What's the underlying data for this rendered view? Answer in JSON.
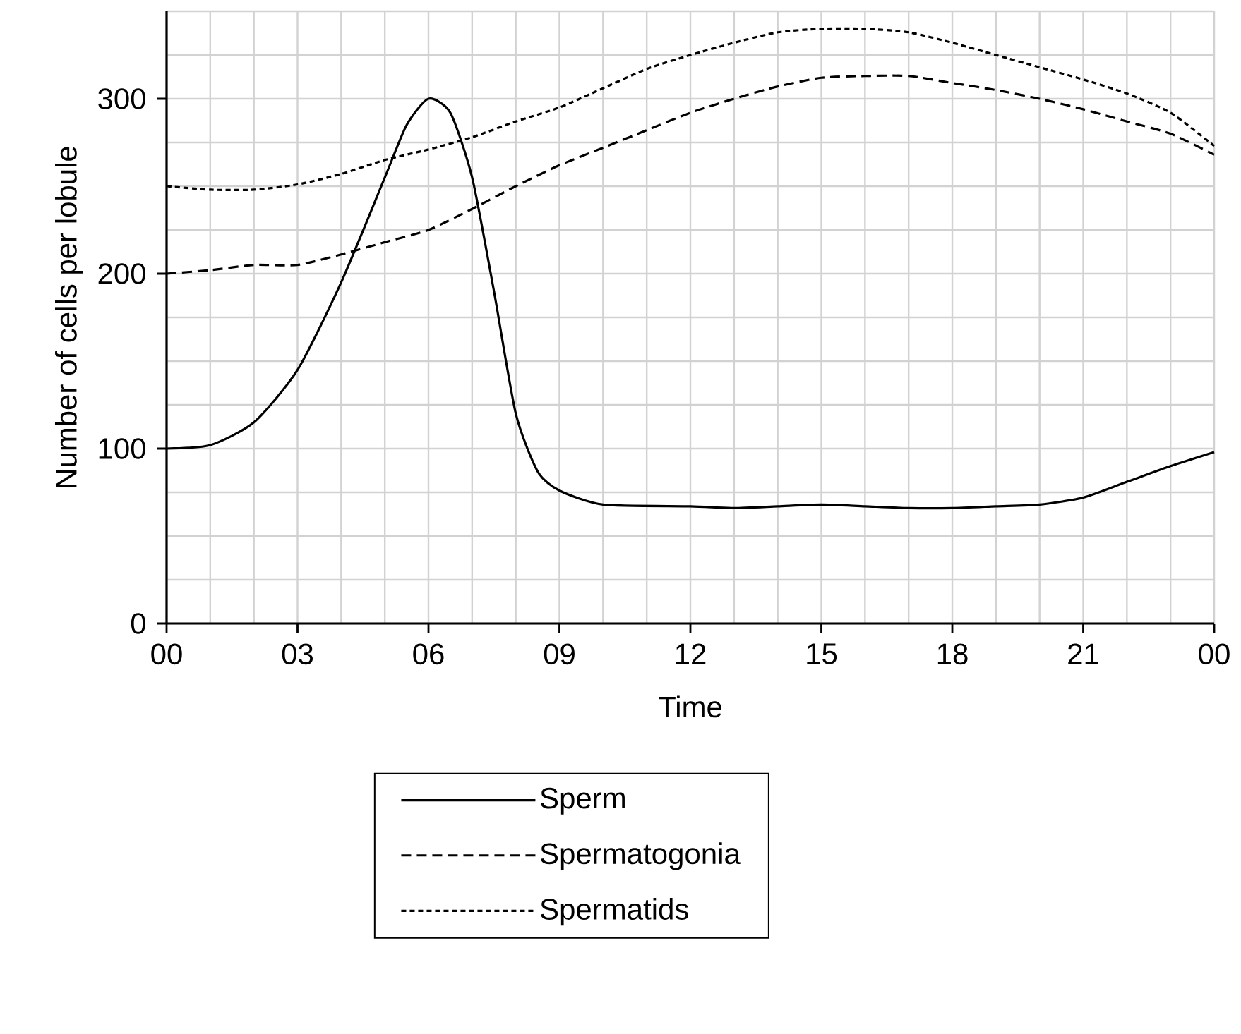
{
  "chart_data": {
    "type": "line",
    "xlabel": "Time",
    "ylabel": "Number of cells per lobule",
    "xlim": [
      0,
      24
    ],
    "ylim": [
      0,
      350
    ],
    "xticks": [
      {
        "value": 0,
        "label": "00"
      },
      {
        "value": 3,
        "label": "03"
      },
      {
        "value": 6,
        "label": "06"
      },
      {
        "value": 9,
        "label": "09"
      },
      {
        "value": 12,
        "label": "12"
      },
      {
        "value": 15,
        "label": "15"
      },
      {
        "value": 18,
        "label": "18"
      },
      {
        "value": 21,
        "label": "21"
      },
      {
        "value": 24,
        "label": "00"
      }
    ],
    "yticks": [
      0,
      100,
      200,
      300
    ],
    "grid": true,
    "legend": "bottom",
    "marker": "none",
    "series": [
      {
        "name": "Sperm",
        "color": "#000000",
        "line_style": "solid",
        "x": [
          0,
          1,
          2,
          3,
          4,
          5,
          5.5,
          6,
          6.5,
          7,
          7.5,
          8,
          8.5,
          9,
          10,
          12,
          13,
          14,
          15,
          16,
          17,
          18,
          19,
          20,
          21,
          22,
          23,
          24
        ],
        "values": [
          100,
          102,
          115,
          145,
          195,
          255,
          285,
          300,
          292,
          255,
          190,
          120,
          87,
          76,
          68,
          67,
          66,
          67,
          68,
          67,
          66,
          66,
          67,
          68,
          72,
          81,
          90,
          98
        ]
      },
      {
        "name": "Spermatogonia",
        "color": "#000000",
        "line_style": "dashed",
        "x": [
          0,
          1,
          2,
          3,
          4,
          5,
          6,
          7,
          8,
          9,
          10,
          11,
          12,
          13,
          14,
          15,
          16,
          17,
          18,
          19,
          20,
          21,
          22,
          23,
          24
        ],
        "values": [
          200,
          202,
          205,
          205,
          211,
          218,
          225,
          237,
          250,
          262,
          272,
          282,
          292,
          300,
          307,
          312,
          313,
          313,
          309,
          305,
          300,
          294,
          287,
          280,
          268
        ]
      },
      {
        "name": "Spermatids",
        "color": "#000000",
        "line_style": "dotted",
        "x": [
          0,
          1,
          2,
          3,
          4,
          5,
          6,
          7,
          8,
          9,
          10,
          11,
          12,
          13,
          14,
          15,
          16,
          17,
          18,
          19,
          20,
          21,
          22,
          23,
          24
        ],
        "values": [
          250,
          248,
          248,
          251,
          257,
          265,
          271,
          278,
          287,
          295,
          306,
          317,
          325,
          332,
          338,
          340,
          340,
          338,
          332,
          325,
          318,
          311,
          303,
          292,
          273
        ]
      }
    ]
  }
}
